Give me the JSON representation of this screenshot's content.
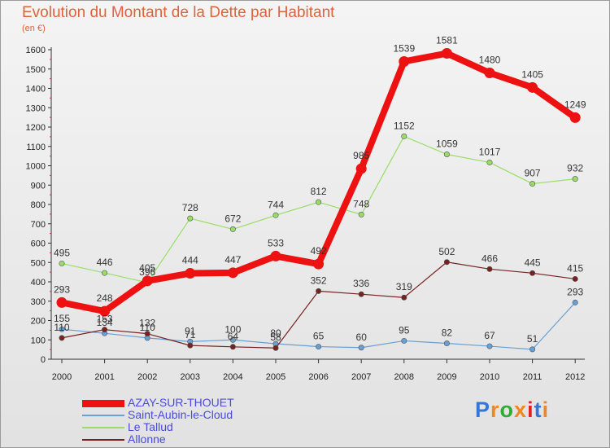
{
  "chart_data": {
    "type": "line",
    "title": "Evolution du Montant de la Dette par Habitant",
    "unit_label": "(en €)",
    "x": [
      "2000",
      "2001",
      "2002",
      "2003",
      "2004",
      "2005",
      "2006",
      "2007",
      "2008",
      "2009",
      "2010",
      "2011",
      "2012"
    ],
    "yticks": [
      "0",
      "100",
      "200",
      "300",
      "400",
      "500",
      "600",
      "700",
      "800",
      "900",
      "1000",
      "1100",
      "1200",
      "1300",
      "1400",
      "1500",
      "1600"
    ],
    "ylim": [
      0,
      1600
    ],
    "grid": false,
    "legend_position": "bottom-left",
    "series": [
      {
        "name": "AZAY-SUR-THOUET",
        "color": "#ee1111",
        "values": [
          293,
          248,
          405,
          444,
          447,
          533,
          492,
          985,
          1539,
          1581,
          1480,
          1405,
          1249
        ],
        "labels": [
          "293",
          "248",
          "405",
          "444",
          "447",
          "533",
          "492",
          "985",
          "1539",
          "1581",
          "1480",
          "1405",
          "1249"
        ]
      },
      {
        "name": "Saint-Aubin-le-Cloud",
        "color": "#6a9fd4",
        "values": [
          155,
          134,
          110,
          91,
          100,
          80,
          65,
          60,
          95,
          82,
          67,
          51,
          293
        ],
        "labels": [
          "155",
          "134",
          "110",
          "91",
          "100",
          "80",
          "65",
          "60",
          "95",
          "82",
          "67",
          "51",
          "293"
        ]
      },
      {
        "name": "Le Tallud",
        "color": "#99dd66",
        "values": [
          495,
          446,
          396,
          728,
          672,
          744,
          812,
          748,
          1152,
          1059,
          1017,
          907,
          932
        ],
        "labels": [
          "495",
          "446",
          "396",
          "728",
          "672",
          "744",
          "812",
          "748",
          "1152",
          "1059",
          "1017",
          "907",
          "932"
        ]
      },
      {
        "name": "Allonne",
        "color": "#772222",
        "values": [
          110,
          153,
          132,
          71,
          64,
          58,
          352,
          336,
          319,
          502,
          466,
          445,
          415
        ],
        "labels": [
          "110",
          "153",
          "132",
          "71",
          "64",
          "58",
          "352",
          "336",
          "319",
          "502",
          "466",
          "445",
          "415"
        ]
      }
    ]
  },
  "logo": {
    "text": "Proxiti",
    "colors": [
      "#3377dd",
      "#ee8822",
      "#33aa33",
      "#ee8822",
      "#dd2222",
      "#3377dd",
      "#ee8822"
    ]
  }
}
